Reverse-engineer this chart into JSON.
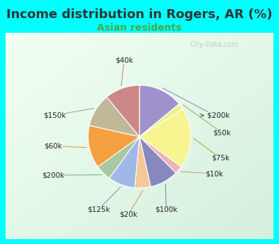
{
  "title": "Income distribution in Rogers, AR (%)",
  "subtitle": "Asian residents",
  "watermark": "© City-Data.com",
  "background_outer": "#00FFFF",
  "title_color": "#333333",
  "title_fontsize": 13,
  "subtitle_color": "#44aa44",
  "subtitle_fontsize": 10,
  "labels": [
    "> $200k",
    "$50k",
    "$75k",
    "$10k",
    "$100k",
    "$20k",
    "$125k",
    "$200k",
    "$60k",
    "$150k",
    "$40k"
  ],
  "values": [
    14.0,
    2.0,
    19.0,
    2.5,
    9.0,
    5.0,
    8.5,
    5.0,
    13.5,
    10.5,
    11.0
  ],
  "colors": [
    "#a090cc",
    "#f0f090",
    "#f8f490",
    "#f0b0b8",
    "#8888c0",
    "#f5c898",
    "#a0b8e8",
    "#a8c8a0",
    "#f5a040",
    "#c0b898",
    "#cc8888"
  ],
  "label_colors": [
    "#888888",
    "#999966",
    "#888800",
    "#cc8888",
    "#8888aa",
    "#cc8844",
    "#8899cc",
    "#88aa88",
    "#cc8833",
    "#aa9966",
    "#cc6666"
  ]
}
